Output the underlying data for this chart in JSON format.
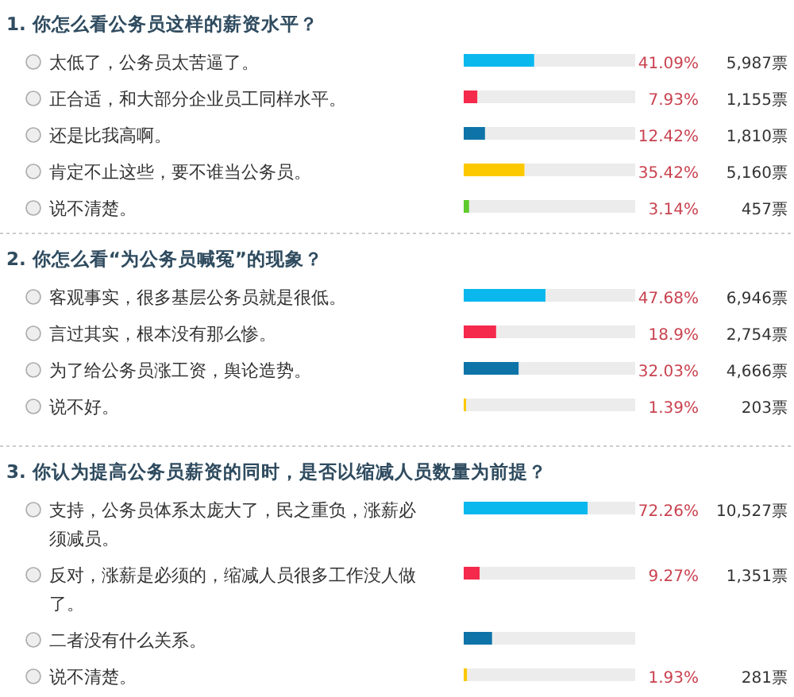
{
  "chart_data": [
    {
      "type": "bar",
      "orientation": "horizontal",
      "title": "1. 你怎么看公务员这样的薪资水平？",
      "categories": [
        "太低了，公务员太苦逼了。",
        "正合适，和大部分企业员工同样水平。",
        "还是比我高啊。",
        "肯定不止这些，要不谁当公务员。",
        "说不清楚。"
      ],
      "values": [
        41.09,
        7.93,
        12.42,
        35.42,
        3.14
      ],
      "colors": [
        "#0bb8ee",
        "#f5294b",
        "#0e74a8",
        "#fcc800",
        "#5ecb2c"
      ],
      "value_labels": [
        "41.09%",
        "7.93%",
        "12.42%",
        "35.42%",
        "3.14%"
      ],
      "annotations": [
        "5,987票",
        "1,155票",
        "1,810票",
        "5,160票",
        "457票"
      ],
      "xlim": [
        0,
        100
      ]
    },
    {
      "type": "bar",
      "orientation": "horizontal",
      "title": "2. 你怎么看“为公务员喊冤”的现象？",
      "categories": [
        "客观事实，很多基层公务员就是很低。",
        "言过其实，根本没有那么惨。",
        "为了给公务员涨工资，舆论造势。",
        "说不好。"
      ],
      "values": [
        47.68,
        18.9,
        32.03,
        1.39
      ],
      "colors": [
        "#0bb8ee",
        "#f5294b",
        "#0e74a8",
        "#fcc800"
      ],
      "value_labels": [
        "47.68%",
        "18.9%",
        "32.03%",
        "1.39%"
      ],
      "annotations": [
        "6,946票",
        "2,754票",
        "4,666票",
        "203票"
      ],
      "xlim": [
        0,
        100
      ]
    },
    {
      "type": "bar",
      "orientation": "horizontal",
      "title": "3. 你认为提高公务员薪资的同时，是否以缩减人员数量为前提？",
      "categories": [
        "支持，公务员体系太庞大了，民之重负，涨薪必须减员。",
        "反对，涨薪是必须的，缩减人员很多工作没人做了。",
        "二者没有什么关系。",
        "说不清楚。"
      ],
      "values": [
        72.26,
        9.27,
        16.54,
        1.93
      ],
      "colors": [
        "#0bb8ee",
        "#f5294b",
        "#0e74a8",
        "#fcc800"
      ],
      "value_labels": [
        "72.26%",
        "9.27%",
        null,
        "1.93%"
      ],
      "annotations": [
        "10,527票",
        "1,351票",
        null,
        "281票"
      ],
      "xlim": [
        0,
        100
      ]
    }
  ]
}
